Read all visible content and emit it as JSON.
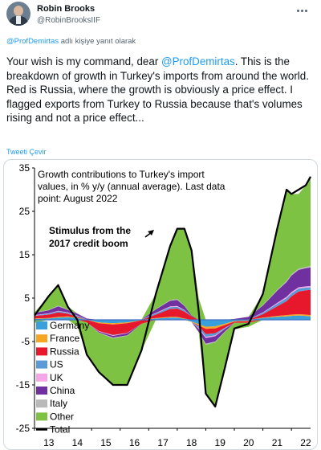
{
  "author": {
    "display_name": "Robin Brooks",
    "handle": "@RobinBrooksIIF"
  },
  "reply": {
    "mention": "@ProfDemirtas",
    "suffix": " adlı kişiye yanıt olarak"
  },
  "tweet": {
    "text_before": "Your wish is my command, dear ",
    "mention": "@ProfDemirtas",
    "text_after": ". This is the breakdown of growth in Turkey's imports from around the world. Red is Russia, where the growth is obviously a price effect. I flagged exports from Turkey to Russia because that's volumes rising and not a price effect..."
  },
  "translate_label": "Tweeti Çevir",
  "icons": {
    "more": "more-horizontal-icon",
    "avatar": "profile-photo"
  },
  "colors": {
    "link": "#1d9bf0",
    "text": "#0f1419",
    "secondary": "#536471"
  },
  "chart_data": {
    "type": "area",
    "stacked": true,
    "title_lines": [
      "Growth contributions to Turkey's import",
      "values, in % y/y (annual average). Last data",
      "point: August 2022"
    ],
    "annotation_lines": [
      "Stimulus from the",
      "2017 credit boom"
    ],
    "y_ticks": [
      35,
      25,
      15,
      5,
      -5,
      -15,
      -25
    ],
    "ylim": [
      -25,
      35
    ],
    "x_ticks": [
      "13",
      "14",
      "15",
      "16",
      "17",
      "18",
      "19",
      "20",
      "21",
      "22"
    ],
    "x_range": [
      2013.0,
      2022.67
    ],
    "grid": false,
    "legend_position": "bottom-left",
    "x": [
      2013.0,
      2013.5,
      2013.83,
      2014.17,
      2014.5,
      2014.83,
      2015.25,
      2015.75,
      2016.25,
      2016.75,
      2017.25,
      2017.75,
      2018.0,
      2018.25,
      2018.5,
      2018.75,
      2019.0,
      2019.33,
      2019.67,
      2020.0,
      2020.5,
      2021.0,
      2021.5,
      2021.83,
      2022.0,
      2022.25,
      2022.5,
      2022.67
    ],
    "series": [
      {
        "name": "Germany",
        "color": "#3aa0dc",
        "values": [
          0.2,
          0.3,
          0.5,
          0.6,
          0.4,
          0.0,
          -0.6,
          -0.8,
          -0.6,
          -0.1,
          0.3,
          0.5,
          0.5,
          0.2,
          -0.4,
          -1.0,
          -1.6,
          -1.5,
          -0.9,
          -0.3,
          -0.2,
          0.4,
          0.7,
          0.8,
          0.9,
          1.0,
          0.9,
          0.8
        ]
      },
      {
        "name": "France",
        "color": "#f5a623",
        "values": [
          0.1,
          0.1,
          0.2,
          0.2,
          0.1,
          0.0,
          -0.2,
          -0.3,
          -0.2,
          0.0,
          0.1,
          0.2,
          0.2,
          0.1,
          -0.1,
          -0.3,
          -0.5,
          -0.5,
          -0.3,
          -0.1,
          -0.1,
          0.1,
          0.2,
          0.3,
          0.3,
          0.3,
          0.3,
          0.3
        ]
      },
      {
        "name": "Russia",
        "color": "#e8182c",
        "values": [
          0.6,
          0.8,
          1.0,
          0.6,
          0.2,
          -0.6,
          -1.8,
          -2.4,
          -2.2,
          -0.8,
          0.8,
          1.8,
          1.9,
          1.6,
          0.8,
          -0.2,
          -1.2,
          -1.1,
          -0.6,
          -0.3,
          -0.4,
          0.8,
          2.2,
          3.2,
          4.2,
          5.2,
          5.6,
          5.8
        ]
      },
      {
        "name": "US",
        "color": "#5b9bd5",
        "values": [
          0.1,
          0.2,
          0.3,
          0.2,
          0.2,
          0.1,
          0.0,
          -0.1,
          0.0,
          0.1,
          0.3,
          0.4,
          0.4,
          0.3,
          0.0,
          -0.4,
          -0.6,
          -0.5,
          -0.2,
          0.0,
          0.1,
          0.3,
          0.6,
          0.7,
          0.7,
          0.7,
          0.6,
          0.6
        ]
      },
      {
        "name": "UK",
        "color": "#f4a6e6",
        "values": [
          0.1,
          0.1,
          0.1,
          0.1,
          0.1,
          0.0,
          -0.1,
          -0.1,
          -0.1,
          0.0,
          0.1,
          0.2,
          0.2,
          0.1,
          0.0,
          -0.2,
          -0.3,
          -0.2,
          -0.1,
          0.0,
          0.0,
          0.1,
          0.2,
          0.3,
          0.3,
          0.3,
          0.3,
          0.3
        ]
      },
      {
        "name": "China",
        "color": "#7030a0",
        "values": [
          0.5,
          0.7,
          1.0,
          0.6,
          0.4,
          0.2,
          -0.2,
          -0.4,
          -0.5,
          0.0,
          0.8,
          1.3,
          1.4,
          0.9,
          0.2,
          -0.7,
          -1.3,
          -1.2,
          -0.6,
          0.2,
          0.6,
          1.6,
          2.8,
          3.4,
          3.8,
          4.0,
          4.2,
          4.3
        ]
      },
      {
        "name": "Italy",
        "color": "#b9b9b9",
        "values": [
          0.1,
          0.1,
          0.2,
          0.1,
          0.1,
          0.0,
          -0.1,
          -0.2,
          -0.1,
          0.0,
          0.1,
          0.2,
          0.2,
          0.1,
          0.0,
          -0.1,
          -0.3,
          -0.2,
          -0.1,
          0.0,
          0.0,
          0.1,
          0.2,
          0.3,
          0.3,
          0.3,
          0.3,
          0.3
        ]
      },
      {
        "name": "Other",
        "color": "#7dc242",
        "values": [
          -0.7,
          3.2,
          4.7,
          0.6,
          -1.5,
          -7.5,
          -9.2,
          -10.7,
          -11.3,
          -6.2,
          3.5,
          12.4,
          16.2,
          17.7,
          15.5,
          5.0,
          -11.2,
          -15.0,
          -8.2,
          -1.5,
          -0.9,
          2.6,
          14.1,
          21.0,
          18.5,
          17.2,
          18.8,
          20.6
        ]
      }
    ],
    "total": {
      "name": "Total",
      "color": "#000000",
      "values": [
        1.0,
        5.5,
        8.0,
        3.0,
        0.0,
        -8.0,
        -12.0,
        -15.0,
        -15.0,
        -7.0,
        6.0,
        17.0,
        21.0,
        21.0,
        16.0,
        2.0,
        -17.0,
        -20.0,
        -11.0,
        -2.0,
        -0.9,
        6.0,
        21.0,
        30.0,
        29.0,
        30.0,
        31.0,
        33.0
      ]
    }
  }
}
